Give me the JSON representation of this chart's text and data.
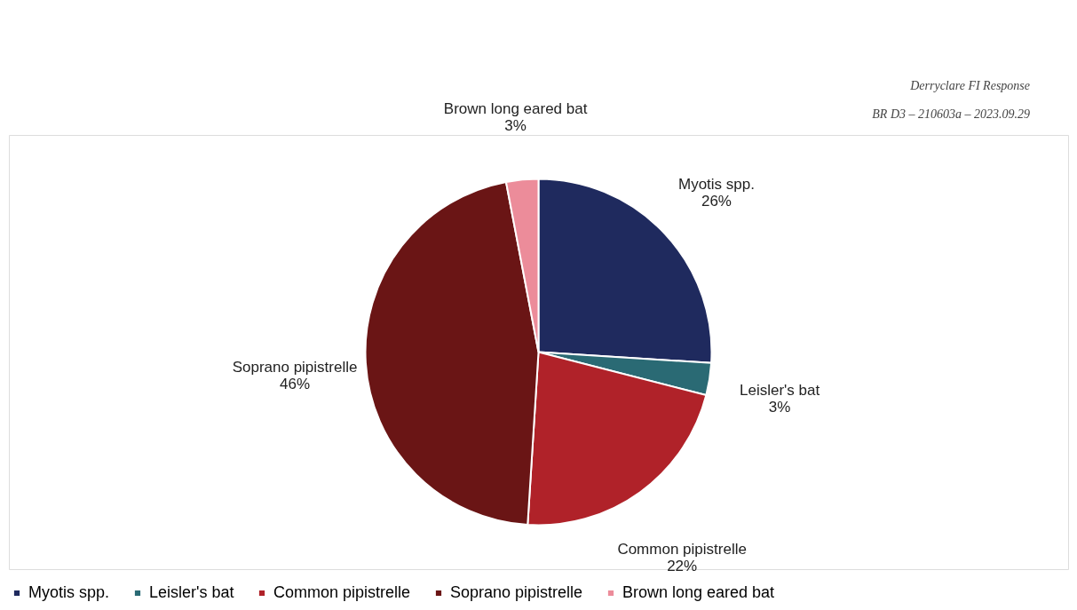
{
  "chart_data": {
    "type": "pie",
    "categories": [
      "Myotis spp.",
      "Leisler's bat",
      "Common pipistrelle",
      "Soprano pipistrelle",
      "Brown long eared bat"
    ],
    "values": [
      26,
      3,
      22,
      46,
      3
    ],
    "colors": [
      "#1f2a5e",
      "#2a6a74",
      "#b02229",
      "#6a1515",
      "#ec8c9a"
    ],
    "value_labels": [
      "26%",
      "3%",
      "22%",
      "46%",
      "3%"
    ],
    "legend": "bottom",
    "annotations": [
      "Derryclare FI Response",
      "BR D3 – 210603a – 2023.09.29"
    ]
  }
}
